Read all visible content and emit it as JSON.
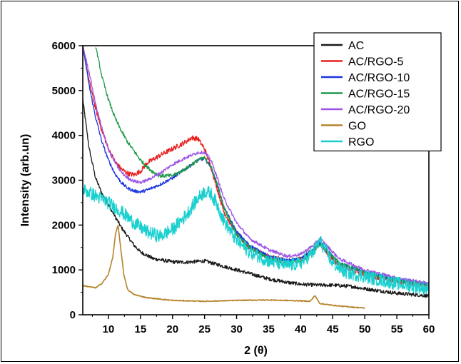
{
  "chart_data": {
    "type": "line",
    "title": "",
    "xlabel": "2 (θ)",
    "ylabel": "Intensity (arb.un)",
    "xlim": [
      6,
      60
    ],
    "ylim": [
      0,
      6000
    ],
    "xticks": [
      10,
      15,
      20,
      25,
      30,
      35,
      40,
      45,
      50,
      55,
      60
    ],
    "yticks": [
      0,
      1000,
      2000,
      3000,
      4000,
      5000,
      6000
    ],
    "grid": false,
    "legend_position": "top-right",
    "series": [
      {
        "name": "AC",
        "color": "#1a1a1a",
        "noise": 40,
        "x": [
          6,
          7,
          8,
          9,
          10,
          11,
          12,
          13,
          14,
          15,
          17,
          20,
          22,
          24,
          25,
          27,
          30,
          33,
          35,
          38,
          40,
          43,
          45,
          48,
          50,
          55,
          60
        ],
        "y": [
          4800,
          3700,
          3050,
          2700,
          2450,
          2200,
          1950,
          1750,
          1550,
          1400,
          1250,
          1180,
          1170,
          1190,
          1200,
          1120,
          1000,
          880,
          800,
          720,
          680,
          660,
          660,
          630,
          580,
          480,
          420
        ]
      },
      {
        "name": "AC/RGO-5",
        "color": "#e8211f",
        "noise": 55,
        "x": [
          6,
          7,
          8,
          9,
          10,
          11,
          12,
          13,
          14,
          15,
          16,
          18,
          20,
          22,
          23,
          24,
          25,
          26,
          27,
          28,
          30,
          32,
          35,
          38,
          40,
          42,
          43,
          44,
          46,
          50,
          55,
          60
        ],
        "y": [
          6000,
          5200,
          4600,
          4100,
          3700,
          3420,
          3250,
          3150,
          3120,
          3200,
          3380,
          3550,
          3700,
          3850,
          3950,
          3920,
          3700,
          3300,
          2800,
          2300,
          1800,
          1500,
          1300,
          1200,
          1250,
          1450,
          1600,
          1400,
          1100,
          900,
          750,
          650
        ]
      },
      {
        "name": "AC/RGO-10",
        "color": "#1c35e0",
        "noise": 35,
        "x": [
          6,
          7,
          8,
          9,
          10,
          11,
          12,
          13,
          14,
          15,
          16,
          18,
          20,
          22,
          24,
          25,
          26,
          27,
          28,
          30,
          32,
          35,
          38,
          40,
          42,
          43,
          44,
          46,
          50,
          55,
          60
        ],
        "y": [
          6000,
          5100,
          4400,
          3850,
          3450,
          3150,
          2950,
          2820,
          2760,
          2740,
          2780,
          2900,
          3050,
          3250,
          3450,
          3480,
          3300,
          2900,
          2400,
          1850,
          1550,
          1300,
          1200,
          1250,
          1450,
          1620,
          1450,
          1150,
          950,
          780,
          680
        ]
      },
      {
        "name": "AC/RGO-15",
        "color": "#1f9a4a",
        "noise": 40,
        "x": [
          8,
          9,
          10,
          11,
          12,
          13,
          14,
          15,
          16,
          17,
          18,
          20,
          22,
          24,
          25,
          26,
          27,
          28,
          30,
          32,
          35,
          38,
          40,
          42,
          43,
          44,
          46,
          50,
          55,
          60
        ],
        "y": [
          6000,
          5300,
          4800,
          4400,
          4100,
          3850,
          3650,
          3450,
          3300,
          3180,
          3100,
          3100,
          3250,
          3450,
          3500,
          3300,
          2900,
          2400,
          1800,
          1500,
          1250,
          1150,
          1200,
          1400,
          1580,
          1450,
          1150,
          950,
          780,
          680
        ]
      },
      {
        "name": "AC/RGO-20",
        "color": "#9c55e6",
        "noise": 35,
        "x": [
          6,
          7,
          8,
          9,
          10,
          11,
          12,
          13,
          14,
          15,
          16,
          18,
          20,
          22,
          24,
          25,
          26,
          27,
          28,
          30,
          32,
          35,
          38,
          40,
          42,
          43,
          44,
          46,
          50,
          55,
          60
        ],
        "y": [
          6000,
          5400,
          4700,
          4150,
          3700,
          3400,
          3180,
          3050,
          2980,
          2950,
          3000,
          3150,
          3350,
          3500,
          3620,
          3620,
          3450,
          3050,
          2600,
          2050,
          1700,
          1450,
          1300,
          1350,
          1550,
          1700,
          1550,
          1250,
          1000,
          820,
          700
        ]
      },
      {
        "name": "GO",
        "color": "#b5832a",
        "noise": 10,
        "x": [
          6,
          8,
          9,
          10,
          10.7,
          11.1,
          11.5,
          11.9,
          12.4,
          13,
          14,
          16,
          20,
          25,
          30,
          35,
          40,
          41.5,
          42.2,
          43,
          45,
          48,
          50
        ],
        "y": [
          650,
          600,
          700,
          900,
          1300,
          1800,
          2000,
          1500,
          900,
          560,
          450,
          380,
          320,
          300,
          320,
          330,
          310,
          300,
          430,
          250,
          210,
          170,
          150
        ]
      },
      {
        "name": "RGO",
        "color": "#19cfcf",
        "noise": 150,
        "x": [
          6,
          8,
          10,
          12,
          14,
          16,
          18,
          20,
          22,
          24,
          25,
          26,
          27,
          28,
          30,
          32,
          35,
          38,
          40,
          42,
          43,
          44,
          45,
          47,
          50,
          55,
          60
        ],
        "y": [
          2800,
          2650,
          2500,
          2300,
          2050,
          1850,
          1750,
          1900,
          2200,
          2600,
          2750,
          2700,
          2450,
          2100,
          1650,
          1400,
          1200,
          1100,
          1150,
          1400,
          1650,
          1400,
          1150,
          950,
          850,
          700,
          580
        ]
      }
    ]
  }
}
